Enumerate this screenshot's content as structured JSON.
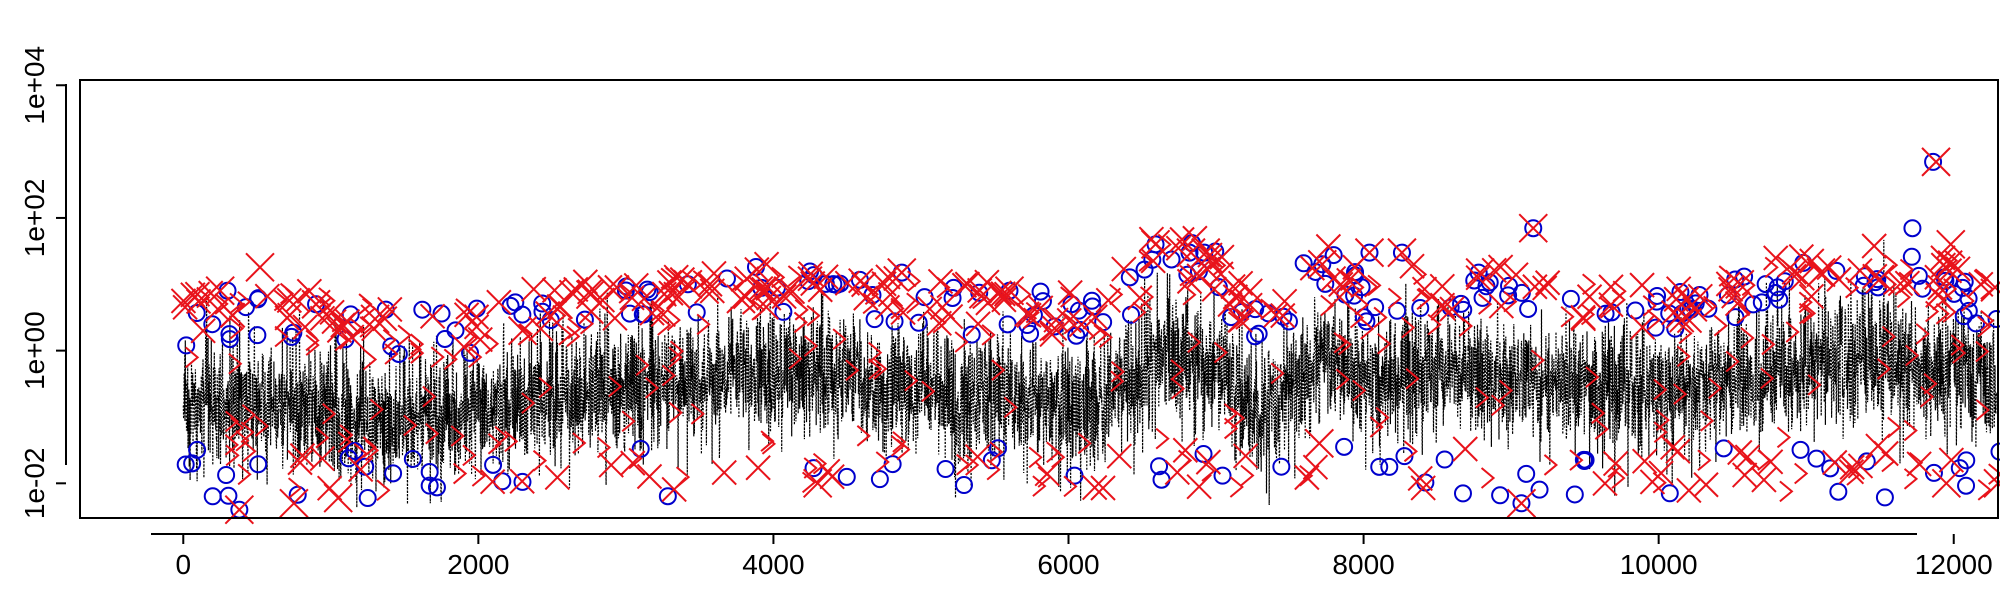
{
  "chart_data": {
    "type": "line",
    "title": "",
    "xlabel": "",
    "ylabel": "",
    "x_log": false,
    "y_log": true,
    "xlim": [
      -700,
      12300
    ],
    "ylim": [
      0.003,
      12000
    ],
    "x_ticks": [
      0,
      2000,
      4000,
      6000,
      8000,
      10000,
      12000
    ],
    "x_tick_labels": [
      "0",
      "2000",
      "4000",
      "6000",
      "8000",
      "10000",
      "12000"
    ],
    "y_ticks": [
      0.01,
      1,
      100,
      10000
    ],
    "y_tick_labels": [
      "1e-02",
      "1e+00",
      "1e+02",
      "1e+04"
    ],
    "grid": false,
    "legend": null,
    "colors": {
      "series_line": "#000000",
      "circle_markers": "#0000cc",
      "cross_markers": "#e8131b",
      "chevron_markers": "#e8131b"
    },
    "series": [
      {
        "style": "dotted black line (dense time series of ~12300 values)",
        "marker": "none",
        "x_range": [
          0,
          12300
        ],
        "level_profile": [
          {
            "x": 0,
            "median": 0.15,
            "high": 2.5
          },
          {
            "x": 500,
            "median": 0.18,
            "high": 4
          },
          {
            "x": 1000,
            "median": 0.12,
            "high": 3
          },
          {
            "x": 1500,
            "median": 0.1,
            "high": 2
          },
          {
            "x": 2000,
            "median": 0.1,
            "high": 2
          },
          {
            "x": 2500,
            "median": 0.2,
            "high": 4
          },
          {
            "x": 3000,
            "median": 0.3,
            "high": 6
          },
          {
            "x": 3500,
            "median": 0.35,
            "high": 7
          },
          {
            "x": 4000,
            "median": 0.5,
            "high": 8
          },
          {
            "x": 4500,
            "median": 0.4,
            "high": 7
          },
          {
            "x": 5000,
            "median": 0.25,
            "high": 5
          },
          {
            "x": 5500,
            "median": 0.2,
            "high": 4
          },
          {
            "x": 6000,
            "median": 0.15,
            "high": 3
          },
          {
            "x": 6500,
            "median": 0.3,
            "high": 10
          },
          {
            "x": 6600,
            "median": 1.2,
            "high": 30
          },
          {
            "x": 7000,
            "median": 0.5,
            "high": 15
          },
          {
            "x": 7300,
            "median": 0.1,
            "high": 2
          },
          {
            "x": 7700,
            "median": 0.8,
            "high": 20
          },
          {
            "x": 8000,
            "median": 0.3,
            "high": 6
          },
          {
            "x": 8500,
            "median": 0.5,
            "high": 8
          },
          {
            "x": 9000,
            "median": 0.4,
            "high": 7
          },
          {
            "x": 9500,
            "median": 0.3,
            "high": 5
          },
          {
            "x": 10000,
            "median": 0.2,
            "high": 4
          },
          {
            "x": 10500,
            "median": 0.4,
            "high": 7
          },
          {
            "x": 11000,
            "median": 0.6,
            "high": 12
          },
          {
            "x": 11500,
            "median": 0.8,
            "high": 20
          },
          {
            "x": 12000,
            "median": 0.5,
            "high": 10
          },
          {
            "x": 12300,
            "median": 0.3,
            "high": 4
          }
        ]
      },
      {
        "style": "blue open circles on high points",
        "marker": "circle",
        "points": [
          [
            20,
            1.2
          ],
          [
            60,
            0.02
          ],
          [
            300,
            8
          ],
          [
            380,
            0.004
          ],
          [
            900,
            5
          ],
          [
            1250,
            0.006
          ],
          [
            3420,
            10
          ],
          [
            4870,
            15
          ],
          [
            5600,
            8
          ],
          [
            6070,
            4
          ],
          [
            6590,
            40
          ],
          [
            6820,
            30
          ],
          [
            6920,
            30
          ],
          [
            7720,
            20
          ],
          [
            8040,
            30
          ],
          [
            8260,
            30
          ],
          [
            8780,
            15
          ],
          [
            9150,
            70
          ],
          [
            9070,
            0.005
          ],
          [
            11720,
            70
          ],
          [
            11860,
            700
          ],
          [
            12290,
            3
          ],
          [
            12310,
            0.03
          ]
        ]
      },
      {
        "style": "red x crosses on extreme points",
        "marker": "x",
        "points": [
          [
            250,
            8
          ],
          [
            520,
            18
          ],
          [
            900,
            5
          ],
          [
            1300,
            3
          ],
          [
            2300,
            2
          ],
          [
            2760,
            7
          ],
          [
            3420,
            10
          ],
          [
            3780,
            6
          ],
          [
            4100,
            8
          ],
          [
            4870,
            15
          ],
          [
            5600,
            8
          ],
          [
            6590,
            40
          ],
          [
            6830,
            30
          ],
          [
            6930,
            30
          ],
          [
            7720,
            20
          ],
          [
            8040,
            30
          ],
          [
            8260,
            30
          ],
          [
            8790,
            15
          ],
          [
            9150,
            70
          ],
          [
            10550,
            10
          ],
          [
            11100,
            15
          ],
          [
            11500,
            12
          ],
          [
            11880,
            700
          ],
          [
            11980,
            40
          ],
          [
            12280,
            9
          ],
          [
            380,
            0.004
          ],
          [
            750,
            0.005
          ],
          [
            1050,
            0.006
          ],
          [
            4300,
            0.01
          ],
          [
            7700,
            0.04
          ],
          [
            9070,
            0.005
          ],
          [
            11950,
            0.01
          ],
          [
            12300,
            0.01
          ]
        ]
      },
      {
        "style": "red chevrons (>) on threshold-crossing points",
        "marker": "chevron",
        "count_estimate": 300
      }
    ]
  }
}
